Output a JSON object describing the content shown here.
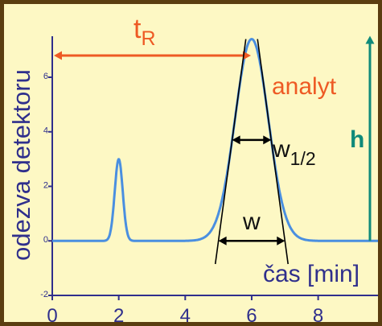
{
  "chart_data": {
    "type": "line",
    "xlabel": "čas [min]",
    "ylabel": "odezva detektoru",
    "x_ticks": [
      "0",
      "2",
      "4",
      "6",
      "8"
    ],
    "y_ticks": [
      "-2",
      "0",
      "2",
      "4",
      "6"
    ],
    "xlim": [
      0,
      9.8
    ],
    "ylim": [
      -2,
      7.8
    ],
    "grid": false,
    "peaks": [
      {
        "center": 2.0,
        "height": 3.0,
        "sigma": 0.12
      },
      {
        "center": 6.0,
        "height": 7.4,
        "sigma": 0.5
      }
    ],
    "annotations": {
      "tR": {
        "main": "t",
        "sub": "R"
      },
      "analyte": "analyt",
      "height": "h",
      "half_width": {
        "main": "w",
        "sub": "1/2"
      },
      "width": "w"
    },
    "colors": {
      "signal": "#4a8fe0",
      "axis": "#2f2f8c",
      "retention_arrow": "#ee5a24",
      "height_arrow": "#0f8a7a",
      "frame": "#5a3d10",
      "background": "#fdf8c4"
    }
  }
}
